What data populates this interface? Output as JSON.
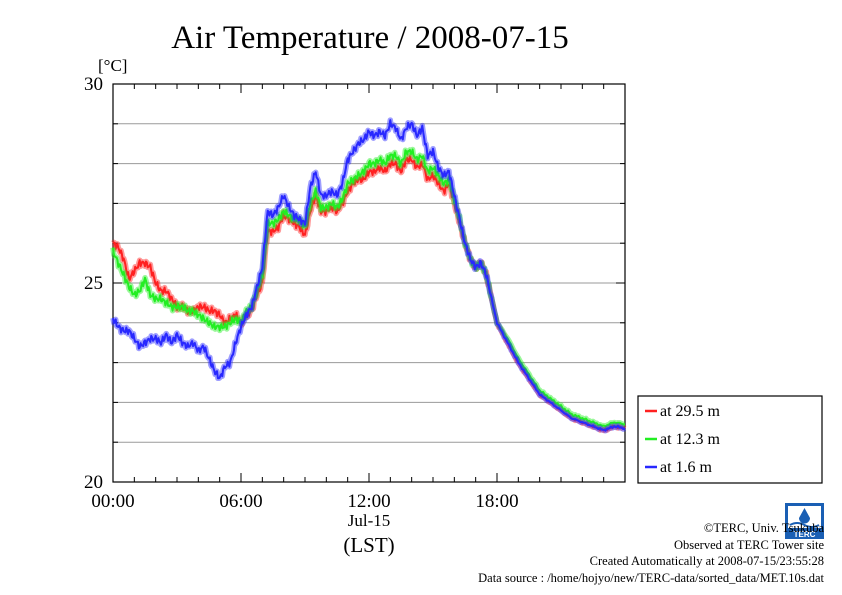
{
  "chart_data": {
    "type": "line",
    "title": "Air Temperature / 2008-07-15",
    "ylabel": "[°C]",
    "xlabel_date": "Jul-15",
    "xlabel_tz": "(LST)",
    "ylim": [
      20,
      30
    ],
    "xlim": [
      0,
      24
    ],
    "y_ticks": [
      "20",
      "25",
      "30"
    ],
    "x_ticks": [
      "00:00",
      "06:00",
      "12:00",
      "18:00"
    ],
    "grid": true,
    "legend_position": "outside-right-bottom",
    "series": [
      {
        "name": "at 29.5 m",
        "color": "#ff2020",
        "x": [
          0,
          0.25,
          0.5,
          0.75,
          1,
          1.25,
          1.5,
          1.75,
          2,
          2.25,
          2.5,
          2.75,
          3,
          3.25,
          3.5,
          3.75,
          4,
          4.25,
          4.5,
          4.75,
          5,
          5.25,
          5.5,
          5.75,
          6,
          6.25,
          6.5,
          6.75,
          7,
          7.25,
          7.5,
          7.75,
          8,
          8.25,
          8.5,
          8.75,
          9,
          9.25,
          9.5,
          9.75,
          10,
          10.25,
          10.5,
          10.75,
          11,
          11.25,
          11.5,
          11.75,
          12,
          12.25,
          12.5,
          12.75,
          13,
          13.25,
          13.5,
          13.75,
          14,
          14.25,
          14.5,
          14.75,
          15,
          15.25,
          15.5,
          15.75,
          16,
          16.25,
          16.5,
          16.75,
          17,
          17.25,
          17.5,
          17.75,
          18,
          18.5,
          19,
          19.5,
          20,
          20.5,
          21,
          21.5,
          22,
          22.5,
          23,
          23.5,
          24
        ],
        "values": [
          26.0,
          25.9,
          25.6,
          25.1,
          25.3,
          25.5,
          25.5,
          25.4,
          25.0,
          24.8,
          24.8,
          24.6,
          24.4,
          24.4,
          24.3,
          24.3,
          24.4,
          24.4,
          24.3,
          24.3,
          24.2,
          24.0,
          24.1,
          24.2,
          24.0,
          24.2,
          24.3,
          24.7,
          25.0,
          26.3,
          26.3,
          26.4,
          26.7,
          26.6,
          26.5,
          26.4,
          26.2,
          26.8,
          27.2,
          26.8,
          26.8,
          26.9,
          26.8,
          27.0,
          27.3,
          27.5,
          27.6,
          27.6,
          27.8,
          27.8,
          27.9,
          27.8,
          28.0,
          28.0,
          27.8,
          28.1,
          28.1,
          27.9,
          28.0,
          27.6,
          27.7,
          27.5,
          27.3,
          27.5,
          27.0,
          26.5,
          26.0,
          25.6,
          25.4,
          25.5,
          25.2,
          24.6,
          24.0,
          23.5,
          23.0,
          22.6,
          22.2,
          22.0,
          21.8,
          21.6,
          21.5,
          21.4,
          21.3,
          21.4,
          21.35
        ]
      },
      {
        "name": "at 12.3 m",
        "color": "#22ee22",
        "x": [
          0,
          0.25,
          0.5,
          0.75,
          1,
          1.25,
          1.5,
          1.75,
          2,
          2.25,
          2.5,
          2.75,
          3,
          3.25,
          3.5,
          3.75,
          4,
          4.25,
          4.5,
          4.75,
          5,
          5.25,
          5.5,
          5.75,
          6,
          6.25,
          6.5,
          6.75,
          7,
          7.25,
          7.5,
          7.75,
          8,
          8.25,
          8.5,
          8.75,
          9,
          9.25,
          9.5,
          9.75,
          10,
          10.25,
          10.5,
          10.75,
          11,
          11.25,
          11.5,
          11.75,
          12,
          12.25,
          12.5,
          12.75,
          13,
          13.25,
          13.5,
          13.75,
          14,
          14.25,
          14.5,
          14.75,
          15,
          15.25,
          15.5,
          15.75,
          16,
          16.25,
          16.5,
          16.75,
          17,
          17.25,
          17.5,
          17.75,
          18,
          18.5,
          19,
          19.5,
          20,
          20.5,
          21,
          21.5,
          22,
          22.5,
          23,
          23.5,
          24
        ],
        "values": [
          25.8,
          25.5,
          25.2,
          24.9,
          24.7,
          24.8,
          25.1,
          24.7,
          24.6,
          24.6,
          24.5,
          24.4,
          24.4,
          24.4,
          24.3,
          24.3,
          24.2,
          24.1,
          24.0,
          23.9,
          23.9,
          23.9,
          24.0,
          24.1,
          24.0,
          24.3,
          24.4,
          24.8,
          25.2,
          26.5,
          26.5,
          26.6,
          26.8,
          26.7,
          26.6,
          26.6,
          26.4,
          27.0,
          27.3,
          26.9,
          26.9,
          27.0,
          26.9,
          27.1,
          27.5,
          27.6,
          27.7,
          27.8,
          28.0,
          28.0,
          28.1,
          28.0,
          28.2,
          28.2,
          28.0,
          28.3,
          28.3,
          28.1,
          28.2,
          27.8,
          27.9,
          27.7,
          27.5,
          27.6,
          27.1,
          26.6,
          26.0,
          25.6,
          25.4,
          25.5,
          25.2,
          24.6,
          24.0,
          23.6,
          23.1,
          22.7,
          22.3,
          22.1,
          21.9,
          21.7,
          21.6,
          21.5,
          21.4,
          21.5,
          21.45
        ]
      },
      {
        "name": "at 1.6 m",
        "color": "#2828ff",
        "x": [
          0,
          0.25,
          0.5,
          0.75,
          1,
          1.25,
          1.5,
          1.75,
          2,
          2.25,
          2.5,
          2.75,
          3,
          3.25,
          3.5,
          3.75,
          4,
          4.25,
          4.5,
          4.75,
          5,
          5.25,
          5.5,
          5.75,
          6,
          6.25,
          6.5,
          6.75,
          7,
          7.25,
          7.5,
          7.75,
          8,
          8.25,
          8.5,
          8.75,
          9,
          9.25,
          9.5,
          9.75,
          10,
          10.25,
          10.5,
          10.75,
          11,
          11.25,
          11.5,
          11.75,
          12,
          12.25,
          12.5,
          12.75,
          13,
          13.25,
          13.5,
          13.75,
          14,
          14.25,
          14.5,
          14.75,
          15,
          15.25,
          15.5,
          15.75,
          16,
          16.25,
          16.5,
          16.75,
          17,
          17.25,
          17.5,
          17.75,
          18,
          18.5,
          19,
          19.5,
          20,
          20.5,
          21,
          21.5,
          22,
          22.5,
          23,
          23.5,
          24
        ],
        "values": [
          24.1,
          23.9,
          23.8,
          23.8,
          23.6,
          23.4,
          23.5,
          23.6,
          23.6,
          23.5,
          23.7,
          23.5,
          23.7,
          23.5,
          23.4,
          23.5,
          23.3,
          23.4,
          23.1,
          22.8,
          22.6,
          22.9,
          23.0,
          23.5,
          23.9,
          24.2,
          24.4,
          24.9,
          25.4,
          26.8,
          26.7,
          26.9,
          27.2,
          26.9,
          26.7,
          26.6,
          26.5,
          27.4,
          27.8,
          27.2,
          27.2,
          27.3,
          27.2,
          27.5,
          28.1,
          28.3,
          28.5,
          28.6,
          28.8,
          28.7,
          28.8,
          28.7,
          29.0,
          28.9,
          28.6,
          28.9,
          29.0,
          28.7,
          28.9,
          28.2,
          28.3,
          27.9,
          27.7,
          27.8,
          27.2,
          26.6,
          26.0,
          25.6,
          25.4,
          25.5,
          25.2,
          24.6,
          24.0,
          23.5,
          23.0,
          22.6,
          22.2,
          22.0,
          21.8,
          21.6,
          21.5,
          21.4,
          21.3,
          21.4,
          21.35
        ]
      }
    ]
  },
  "footer": {
    "copyright": "©TERC, Univ. Tsukuba",
    "observed": "Observed at TERC Tower site",
    "created": "Created Automatically at 2008-07-15/23:55:28",
    "source": "Data source : /home/hojyo/new/TERC-data/sorted_data/MET.10s.dat"
  },
  "logo": {
    "text": "TERC",
    "color": "#1a5fb4"
  }
}
